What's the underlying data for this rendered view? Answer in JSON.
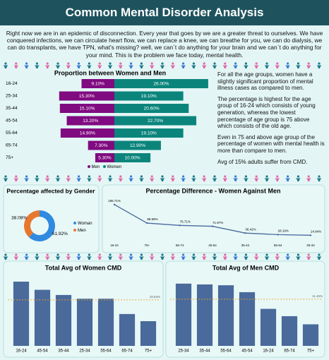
{
  "header": {
    "title": "Common Mental Disorder Analysis"
  },
  "intro": "Right now we are in an epidemic of disconnection. Every year that goes by we are a greater threat to ourselves. We have conquered infections, we can circulate heart flow, we can replace a knee, we can breathe for you, we can do dialysis, we can do transplants, we have TPN, what's missing? well, we can`t do anything for your brain and we can`t do anything for your mind. This is the problem we face today, mental health.",
  "notes": [
    "For all the age groups, women have a slightly significant proportion of mental illness cases as compared to men.",
    "The percentage is highest for the age group of 16-24 which consists of young generation, whereas the lowest percentage of age group is 75 above which consists of the old age.",
    "Even in 75 and above age group of the percentage of women with mental health is more than compare to men.",
    "Avg of 15% adults suffer from CMD."
  ],
  "chart_data": [
    {
      "type": "butterfly",
      "title": "Proportion between Women and Men",
      "categories": [
        "16-24",
        "25-34",
        "35-44",
        "45-54",
        "55-64",
        "65-74",
        "75+"
      ],
      "series": [
        {
          "name": "Men",
          "color": "#800a80",
          "values": [
            9.1,
            15.3,
            15.1,
            13.2,
            14.9,
            7.3,
            5.3
          ],
          "value_labels": [
            "9.10%",
            "15.30%",
            "15.10%",
            "13.20%",
            "14.90%",
            "7.30%",
            "5.30%"
          ]
        },
        {
          "name": "Women",
          "color": "#0b857c",
          "values": [
            26.0,
            19.1,
            20.6,
            22.7,
            19.1,
            12.9,
            10.0
          ],
          "value_labels": [
            "26.00%",
            "19.10%",
            "20.60%",
            "22.70%",
            "19.10%",
            "12.90%",
            "10.00%"
          ]
        }
      ],
      "xlim": [
        0,
        27
      ]
    },
    {
      "type": "pie",
      "title": "Percentage affected by Gender",
      "categories": [
        "Woman",
        "Men"
      ],
      "values": [
        61.92,
        38.08
      ],
      "value_labels": [
        "61.92%",
        "38.08%"
      ],
      "colors": [
        "#2f8ae0",
        "#e8772e"
      ]
    },
    {
      "type": "line",
      "title": "Percentage Difference - Women Against Men",
      "categories": [
        "16-24",
        "75+",
        "65-74",
        "45-54",
        "35-44",
        "55-64",
        "25-34"
      ],
      "values": [
        185.71,
        88.68,
        76.71,
        71.97,
        36.42,
        28.19,
        24.84
      ],
      "value_labels": [
        "185.71%",
        "88.68%",
        "76.71%",
        "71.97%",
        "36.42%",
        "28.19%",
        "24.84%"
      ],
      "color": "#4a6a9c",
      "ylim": [
        0,
        200
      ]
    },
    {
      "type": "bar",
      "title": "Total Avg of Women CMD",
      "categories": [
        "16-24",
        "45-54",
        "35-44",
        "25-34",
        "55-64",
        "65-74",
        "75+"
      ],
      "values": [
        26.0,
        22.7,
        20.6,
        19.1,
        19.1,
        12.9,
        10.0
      ],
      "color": "#4a6a9c",
      "ylim": [
        0,
        28
      ],
      "reference": {
        "value": 18.63,
        "label": "18.63%",
        "color": "#f0a020"
      }
    },
    {
      "type": "bar",
      "title": "Total Avg of Men CMD",
      "categories": [
        "25-34",
        "35-44",
        "55-64",
        "45-54",
        "16-24",
        "65-74",
        "75+"
      ],
      "values": [
        15.3,
        15.1,
        14.9,
        13.2,
        9.1,
        7.3,
        5.3
      ],
      "color": "#4a6a9c",
      "ylim": [
        0,
        17
      ],
      "reference": {
        "value": 11.46,
        "label": "11.46%",
        "color": "#f0a020"
      }
    }
  ]
}
